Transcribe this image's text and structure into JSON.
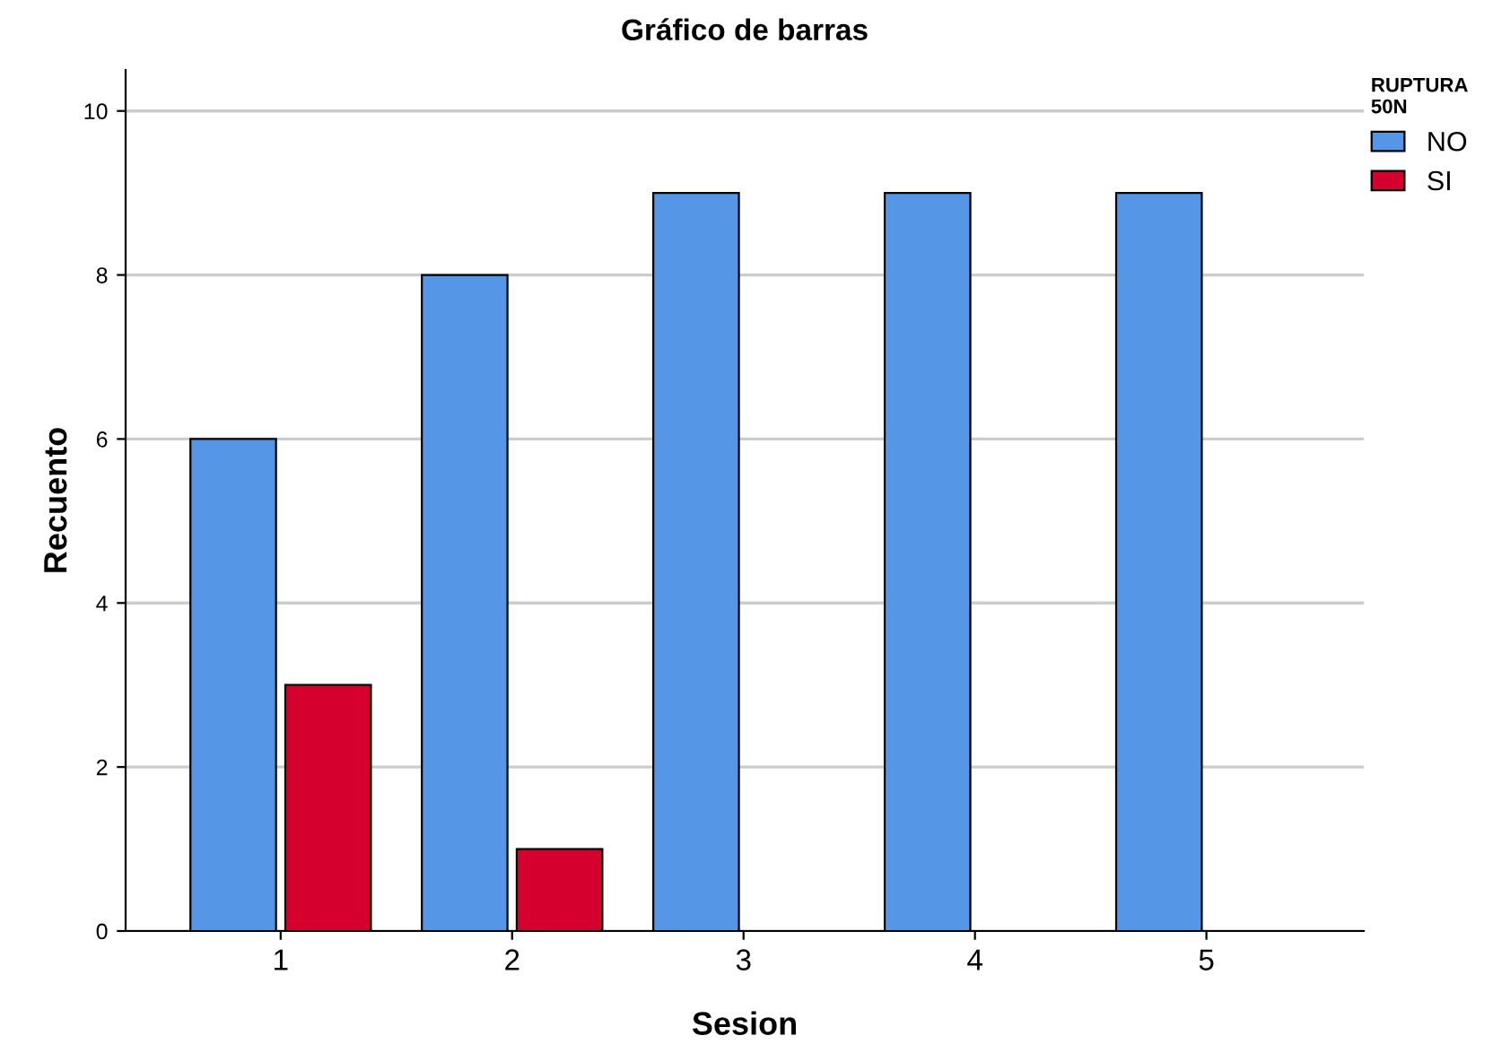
{
  "chart_data": {
    "type": "bar",
    "title": "Gráfico de barras",
    "xlabel": "Sesion",
    "ylabel": "Recuento",
    "legend_title": "RUPTURA\n50N",
    "categories": [
      "1",
      "2",
      "3",
      "4",
      "5"
    ],
    "series": [
      {
        "name": "NO",
        "color": "#5596e6",
        "values": [
          6,
          8,
          9,
          9,
          9
        ]
      },
      {
        "name": "SI",
        "color": "#d5002d",
        "values": [
          3,
          1,
          null,
          null,
          null
        ]
      }
    ],
    "ylim": [
      0,
      10.5
    ],
    "yticks": [
      0,
      2,
      4,
      6,
      8,
      10
    ],
    "grid": "y",
    "legend": "top right"
  }
}
